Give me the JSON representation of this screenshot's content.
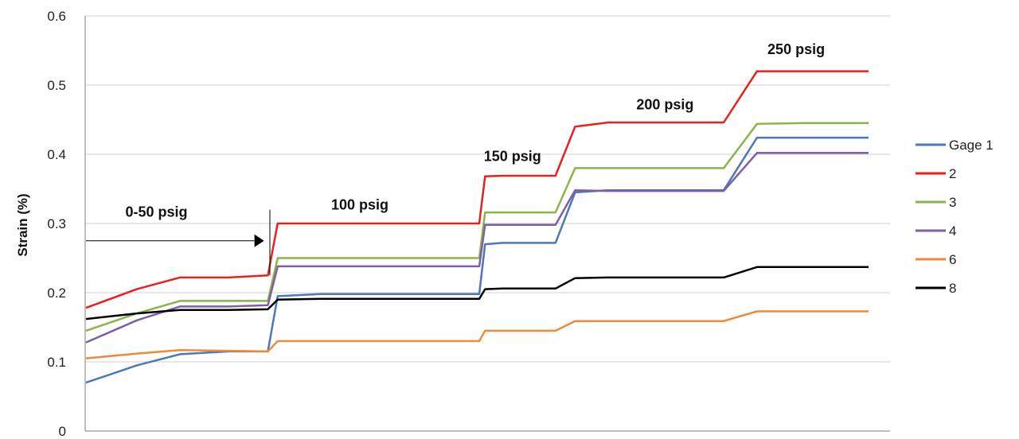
{
  "chart_data": {
    "type": "line",
    "title": "",
    "xlabel": "",
    "ylabel": "Strain (%)",
    "ylim": [
      0,
      0.6
    ],
    "yticks": [
      "0",
      "0.1",
      "0.2",
      "0.3",
      "0.4",
      "0.5",
      "0.6"
    ],
    "grid": true,
    "legend_position": "right",
    "x": [
      0,
      26,
      48,
      73,
      93,
      98,
      120,
      148,
      171,
      201,
      204,
      213,
      240,
      250,
      267,
      284,
      300,
      326,
      343,
      367,
      385,
      400
    ],
    "series": [
      {
        "name": "Gage 1",
        "color": "#4a78b8",
        "values": [
          0.07,
          0.095,
          0.111,
          0.115,
          0.115,
          0.195,
          0.198,
          0.198,
          0.198,
          0.198,
          0.27,
          0.272,
          0.272,
          0.345,
          0.348,
          0.348,
          0.348,
          0.348,
          0.424,
          0.424,
          0.424,
          0.424
        ]
      },
      {
        "name": "2",
        "color": "#e8201d",
        "values": [
          0.178,
          0.205,
          0.222,
          0.222,
          0.225,
          0.3,
          0.3,
          0.3,
          0.3,
          0.3,
          0.368,
          0.369,
          0.369,
          0.44,
          0.446,
          0.446,
          0.446,
          0.446,
          0.52,
          0.52,
          0.52,
          0.52
        ]
      },
      {
        "name": "3",
        "color": "#8bb34a",
        "values": [
          0.145,
          0.17,
          0.188,
          0.188,
          0.188,
          0.25,
          0.25,
          0.25,
          0.25,
          0.25,
          0.316,
          0.316,
          0.316,
          0.38,
          0.38,
          0.38,
          0.38,
          0.38,
          0.444,
          0.445,
          0.445,
          0.445
        ]
      },
      {
        "name": "4",
        "color": "#7d5ea8",
        "values": [
          0.128,
          0.16,
          0.18,
          0.18,
          0.182,
          0.238,
          0.238,
          0.238,
          0.238,
          0.238,
          0.298,
          0.298,
          0.298,
          0.348,
          0.347,
          0.347,
          0.347,
          0.347,
          0.402,
          0.402,
          0.402,
          0.402
        ]
      },
      {
        "name": "6",
        "color": "#ec8b3a",
        "values": [
          0.105,
          0.112,
          0.117,
          0.116,
          0.115,
          0.13,
          0.13,
          0.13,
          0.13,
          0.13,
          0.145,
          0.145,
          0.145,
          0.159,
          0.159,
          0.159,
          0.159,
          0.159,
          0.173,
          0.173,
          0.173,
          0.173
        ]
      },
      {
        "name": "8",
        "color": "#000000",
        "values": [
          0.162,
          0.17,
          0.175,
          0.175,
          0.176,
          0.19,
          0.191,
          0.191,
          0.191,
          0.191,
          0.205,
          0.206,
          0.206,
          0.221,
          0.222,
          0.222,
          0.222,
          0.222,
          0.237,
          0.237,
          0.237,
          0.237
        ]
      }
    ],
    "annotations": [
      {
        "text": "0-50 psig",
        "x": 36,
        "y": 0.31
      },
      {
        "text": "100 psig",
        "x": 140,
        "y": 0.32
      },
      {
        "text": "150 psig",
        "x": 218,
        "y": 0.39
      },
      {
        "text": "200 psig",
        "x": 296,
        "y": 0.465
      },
      {
        "text": "250 psig",
        "x": 363,
        "y": 0.545
      }
    ]
  }
}
